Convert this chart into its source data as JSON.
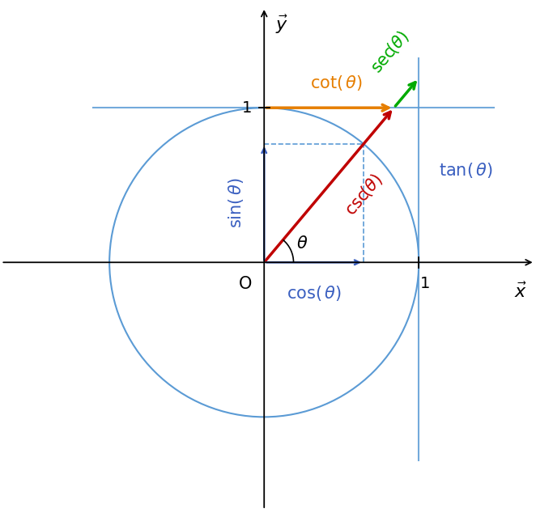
{
  "theta_deg": 50,
  "circle_color": "#5b9bd5",
  "circle_linewidth": 1.5,
  "axis_color": "black",
  "axis_linewidth": 1.3,
  "tan_line_color": "#5b9bd5",
  "y1_line_color": "#5b9bd5",
  "csc_color": "#c00000",
  "csc_linewidth": 2.5,
  "sec_color": "#00aa00",
  "sec_linewidth": 2.5,
  "cot_color": "#e67e00",
  "cot_linewidth": 2.5,
  "cos_arrow_color": "#3a5fc0",
  "sin_arrow_color": "#3a5fc0",
  "dashed_color": "#5b9bd5",
  "label_sin_color": "#3a5fc0",
  "label_cos_color": "#3a5fc0",
  "label_tan_color": "#3a5fc0",
  "label_csc_color": "#c00000",
  "label_sec_color": "#00aa00",
  "label_cot_color": "#e67e00",
  "label_theta_color": "black",
  "background_color": "white",
  "fontsize": 15,
  "xlim": [
    -1.7,
    1.75
  ],
  "ylim": [
    -1.6,
    1.65
  ]
}
